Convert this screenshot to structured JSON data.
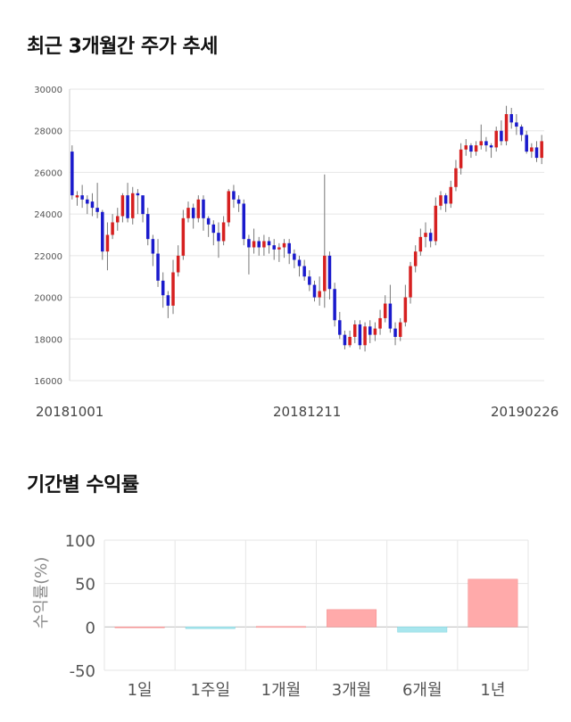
{
  "price_section": {
    "title": "최근 3개월간 주가 추세"
  },
  "returns_section": {
    "title": "기간별 수익률"
  },
  "chart_data": [
    {
      "type": "candlestick",
      "title": "최근 3개월간 주가 추세",
      "ylim": [
        16000,
        30000
      ],
      "yticks": [
        16000,
        18000,
        20000,
        22000,
        24000,
        26000,
        28000,
        30000
      ],
      "date_labels": [
        "20181001",
        "20181211",
        "20190226"
      ],
      "up_color": "#d62020",
      "down_color": "#1a1acc",
      "wick_color": "#777777",
      "candles": [
        [
          27000,
          24900,
          27300,
          24700
        ],
        [
          24800,
          24900,
          25100,
          24400
        ],
        [
          24900,
          24700,
          25400,
          24300
        ],
        [
          24700,
          24500,
          24900,
          24000
        ],
        [
          24600,
          24300,
          25000,
          23900
        ],
        [
          24300,
          24100,
          25500,
          23800
        ],
        [
          24100,
          22200,
          24200,
          21800
        ],
        [
          22200,
          23000,
          23600,
          21300
        ],
        [
          23000,
          23600,
          24000,
          22800
        ],
        [
          23600,
          23900,
          24300,
          23200
        ],
        [
          23900,
          24900,
          25000,
          23600
        ],
        [
          24900,
          23800,
          25500,
          23600
        ],
        [
          23800,
          25000,
          25300,
          23500
        ],
        [
          25000,
          24900,
          25200,
          24000
        ],
        [
          24900,
          24000,
          24300,
          23600
        ],
        [
          24000,
          22800,
          24300,
          22500
        ],
        [
          22800,
          22100,
          23000,
          21500
        ],
        [
          22100,
          20800,
          22800,
          20500
        ],
        [
          20800,
          20100,
          21200,
          19500
        ],
        [
          20100,
          19600,
          20300,
          19000
        ],
        [
          19600,
          21200,
          21800,
          19200
        ],
        [
          21200,
          22000,
          22500,
          21000
        ],
        [
          22000,
          23800,
          24200,
          21800
        ],
        [
          23800,
          24300,
          24600,
          23600
        ],
        [
          24300,
          23800,
          24500,
          23300
        ],
        [
          23800,
          24700,
          24900,
          23600
        ],
        [
          24700,
          23800,
          24900,
          23200
        ],
        [
          23800,
          23500,
          23900,
          22900
        ],
        [
          23500,
          23100,
          23700,
          22500
        ],
        [
          23100,
          22700,
          23600,
          21900
        ],
        [
          22700,
          23600,
          23900,
          22500
        ],
        [
          23600,
          25100,
          25200,
          23400
        ],
        [
          25100,
          24700,
          25400,
          24300
        ],
        [
          24700,
          24500,
          24900,
          24100
        ],
        [
          24500,
          22800,
          24700,
          22500
        ],
        [
          22800,
          22400,
          23000,
          21100
        ],
        [
          22400,
          22700,
          23300,
          22100
        ],
        [
          22700,
          22400,
          22900,
          22000
        ],
        [
          22400,
          22700,
          23000,
          22000
        ],
        [
          22700,
          22500,
          22900,
          22100
        ],
        [
          22500,
          22300,
          22800,
          21800
        ],
        [
          22300,
          22400,
          22600,
          21700
        ],
        [
          22400,
          22600,
          22800,
          21900
        ],
        [
          22600,
          22100,
          22800,
          21600
        ],
        [
          22100,
          21800,
          22300,
          21400
        ],
        [
          21800,
          21500,
          22000,
          21000
        ],
        [
          21500,
          21000,
          21800,
          20800
        ],
        [
          21000,
          20600,
          21300,
          20300
        ],
        [
          20600,
          20000,
          20800,
          19800
        ],
        [
          20000,
          20300,
          21000,
          19600
        ],
        [
          20300,
          22000,
          25900,
          19500
        ],
        [
          22000,
          20400,
          22200,
          19900
        ],
        [
          20400,
          18900,
          20700,
          18600
        ],
        [
          18900,
          18200,
          19300,
          18000
        ],
        [
          18200,
          17700,
          18400,
          17500
        ],
        [
          17700,
          18100,
          18400,
          17600
        ],
        [
          18100,
          18700,
          18900,
          17800
        ],
        [
          18700,
          17700,
          18900,
          17500
        ],
        [
          17700,
          18600,
          18800,
          17400
        ],
        [
          18600,
          18200,
          18900,
          17800
        ],
        [
          18200,
          18500,
          18800,
          17900
        ],
        [
          18500,
          19000,
          19400,
          18200
        ],
        [
          19000,
          19700,
          20100,
          18800
        ],
        [
          19700,
          18500,
          20600,
          18300
        ],
        [
          18500,
          18100,
          18800,
          17700
        ],
        [
          18100,
          18800,
          19000,
          17900
        ],
        [
          18800,
          20000,
          20600,
          18600
        ],
        [
          20000,
          21500,
          21700,
          19700
        ],
        [
          21500,
          22200,
          22500,
          21200
        ],
        [
          22200,
          22900,
          23300,
          22000
        ],
        [
          22900,
          23100,
          23600,
          22400
        ],
        [
          23100,
          22700,
          23300,
          22400
        ],
        [
          22700,
          24400,
          24800,
          22500
        ],
        [
          24400,
          24900,
          25100,
          24200
        ],
        [
          24900,
          24500,
          25000,
          24100
        ],
        [
          24500,
          25300,
          25600,
          24300
        ],
        [
          25300,
          26200,
          26600,
          25100
        ],
        [
          26200,
          27100,
          27400,
          25900
        ],
        [
          27100,
          27300,
          27600,
          26800
        ],
        [
          27300,
          27000,
          27400,
          26700
        ],
        [
          27000,
          27300,
          27500,
          26800
        ],
        [
          27300,
          27500,
          28300,
          27100
        ],
        [
          27500,
          27300,
          27700,
          27000
        ],
        [
          27300,
          27200,
          27400,
          26700
        ],
        [
          27200,
          28000,
          28200,
          27000
        ],
        [
          28000,
          27500,
          28500,
          27300
        ],
        [
          27500,
          28800,
          29200,
          27300
        ],
        [
          28800,
          28400,
          29100,
          28100
        ],
        [
          28400,
          28200,
          28800,
          27800
        ],
        [
          28200,
          27800,
          28300,
          27500
        ],
        [
          27800,
          27000,
          28000,
          26900
        ],
        [
          27000,
          27200,
          27400,
          26700
        ],
        [
          27200,
          26700,
          27500,
          26500
        ],
        [
          26700,
          27500,
          27800,
          26400
        ]
      ]
    },
    {
      "type": "bar",
      "title": "기간별 수익률",
      "ylabel": "수익률(%)",
      "ylim": [
        -50,
        100
      ],
      "yticks": [
        100,
        50,
        0,
        -50
      ],
      "categories": [
        "1일",
        "1주일",
        "1개월",
        "3개월",
        "6개월",
        "1년"
      ],
      "values": [
        0,
        -2,
        0.5,
        20,
        -6,
        55
      ],
      "positive_color": "#ffaaaa",
      "negative_color": "#a8e6ee"
    }
  ]
}
